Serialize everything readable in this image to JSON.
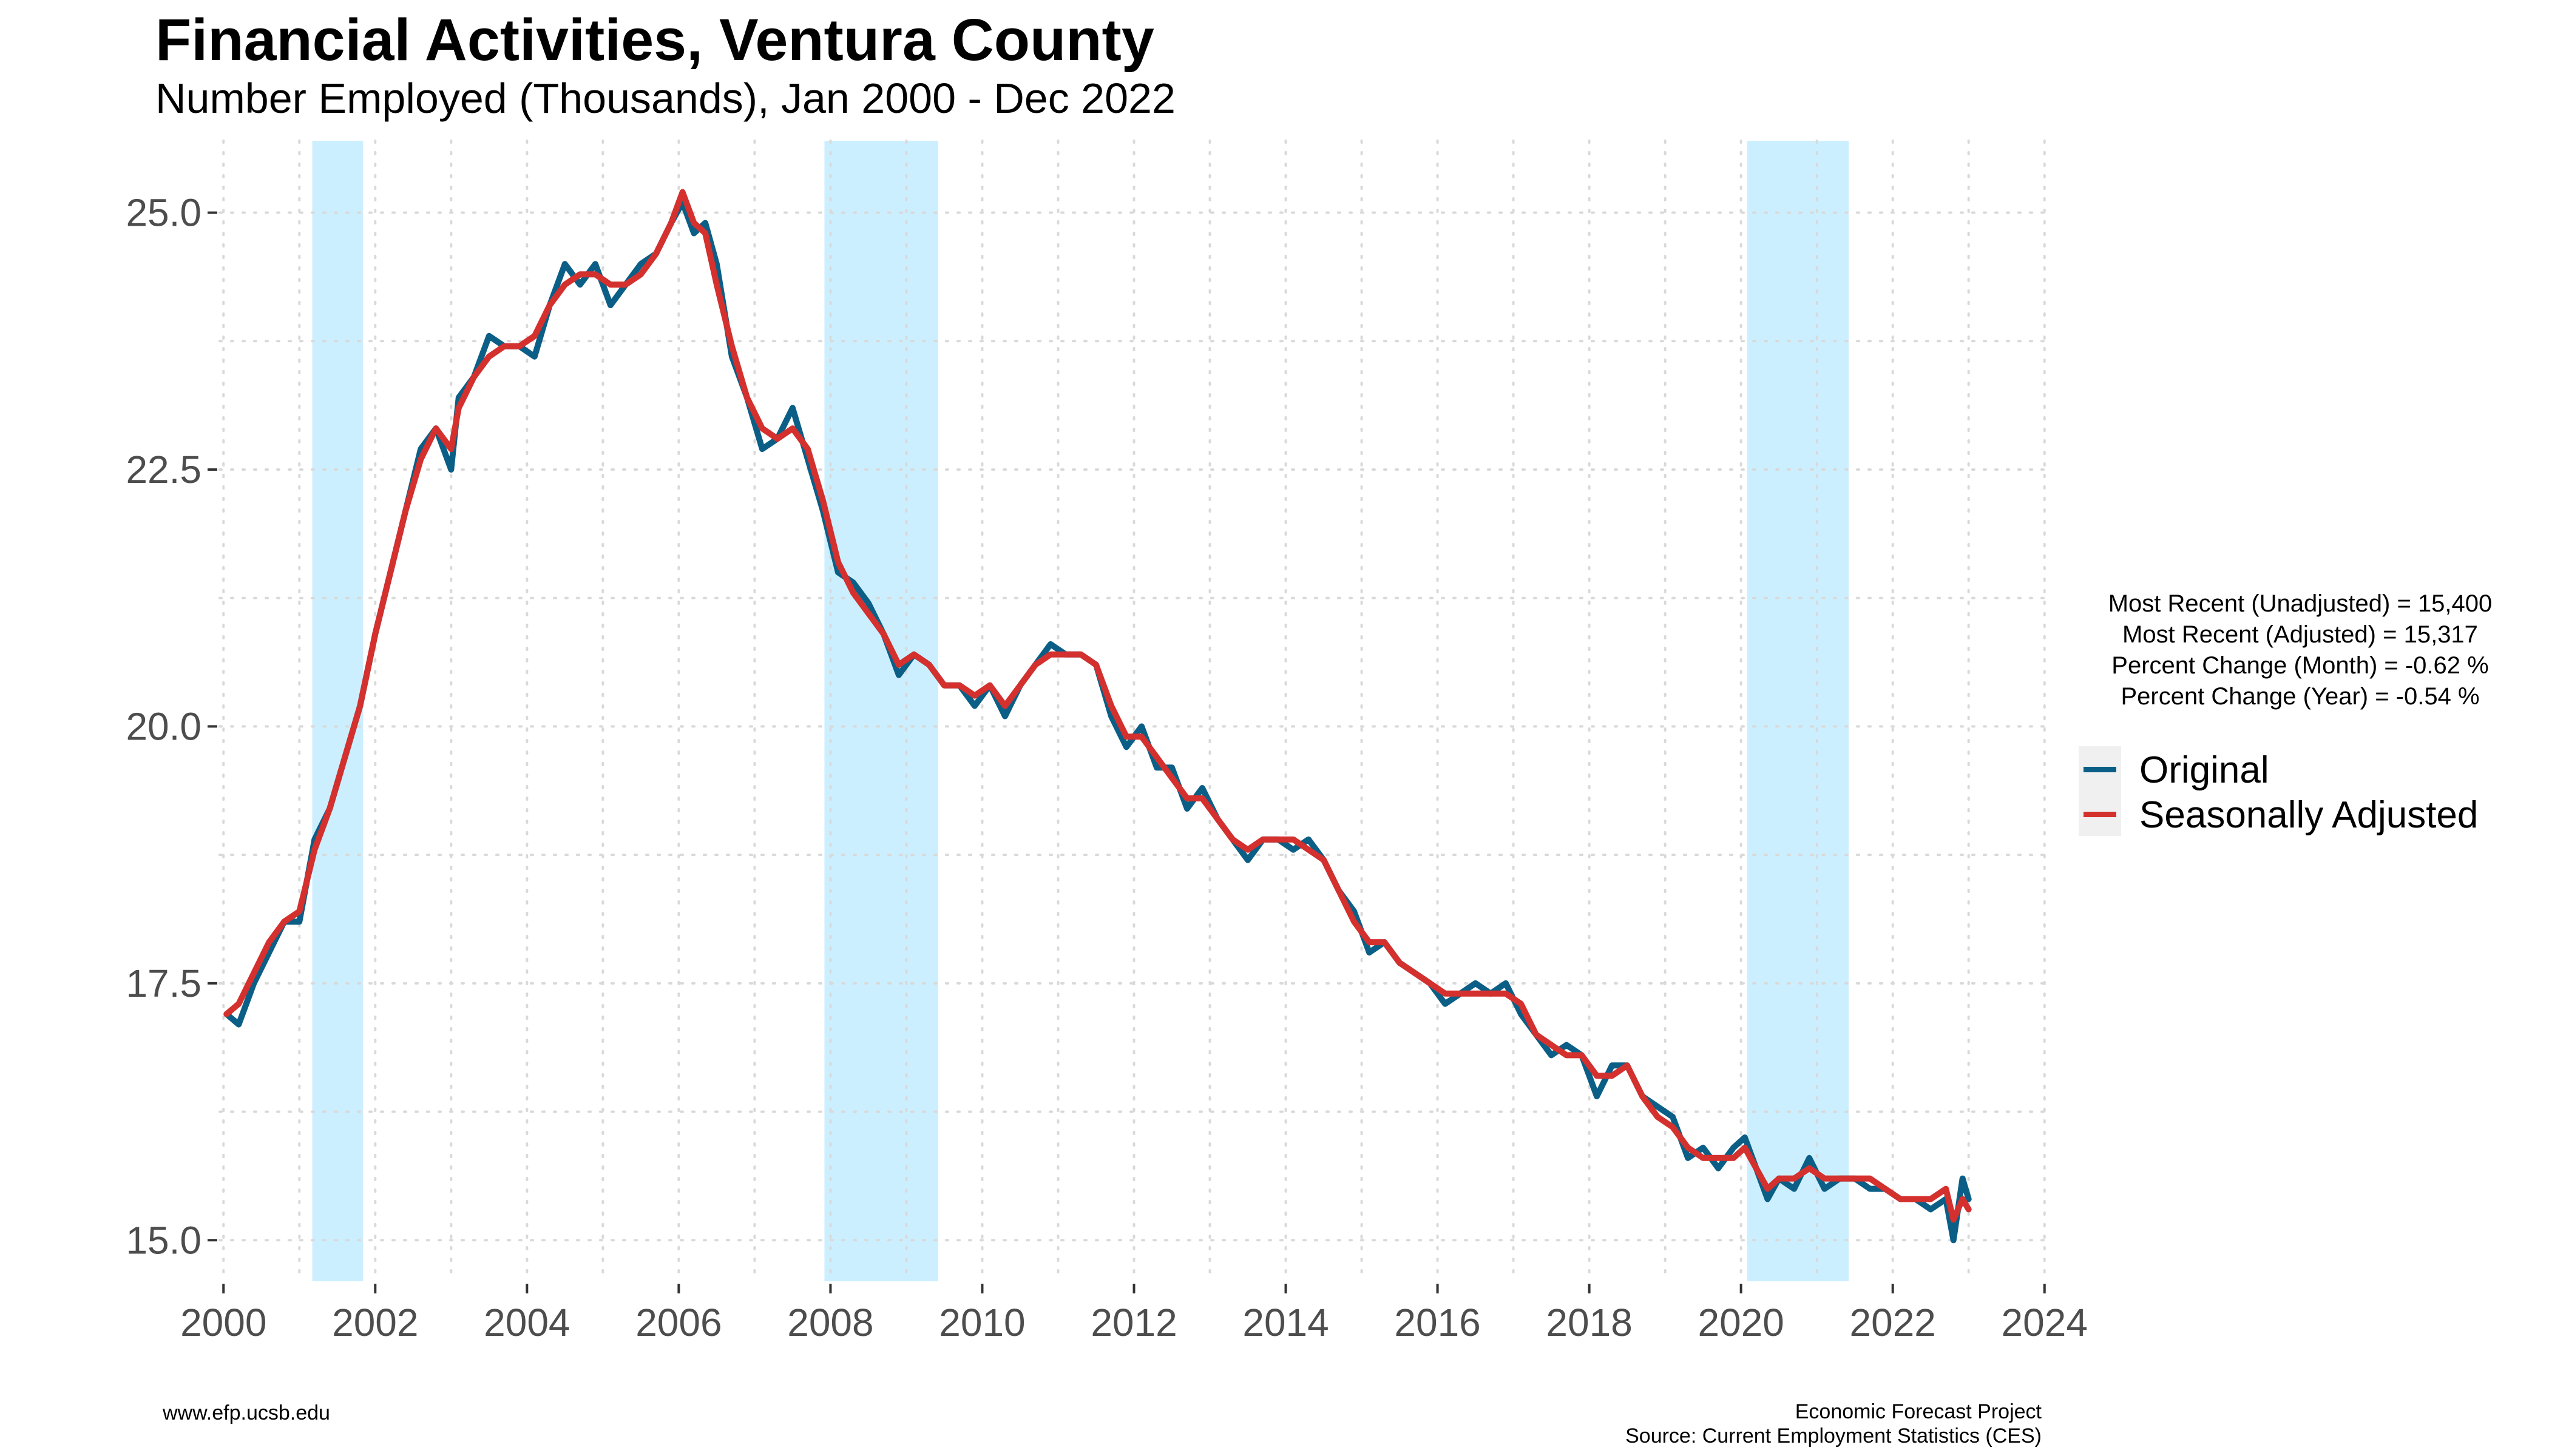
{
  "title": "Financial Activities, Ventura County",
  "subtitle": "Number Employed (Thousands), Jan 2000 - Dec 2022",
  "stats": [
    "Most Recent (Unadjusted) = 15,400",
    "Most Recent (Adjusted) = 15,317",
    "Percent Change (Month) = -0.62 %",
    "Percent Change (Year) = -0.54 %"
  ],
  "legend": [
    {
      "label": "Original",
      "color": "#0b5f86"
    },
    {
      "label": "Seasonally Adjusted",
      "color": "#d3302e"
    }
  ],
  "footer": {
    "left": "www.efp.ucsb.edu",
    "right_line1": "Economic Forecast Project",
    "right_line2": "Source: Current Employment Statistics (CES)"
  },
  "colors": {
    "recession_shade": "#ccefff",
    "grid": "#d9d9d9",
    "axis_text": "#4d4d4d"
  },
  "chart_data": {
    "type": "line",
    "title": "Financial Activities, Ventura County",
    "subtitle": "Number Employed (Thousands), Jan 2000 - Dec 2022",
    "xlabel": "",
    "ylabel": "",
    "xlim": [
      1999.95,
      2024.05
    ],
    "ylim": [
      14.6,
      25.7
    ],
    "x_ticks": [
      2000,
      2002,
      2004,
      2006,
      2008,
      2010,
      2012,
      2014,
      2016,
      2018,
      2020,
      2022,
      2024
    ],
    "y_ticks": [
      15.0,
      17.5,
      20.0,
      22.5,
      25.0
    ],
    "y_tick_labels": [
      "15.0",
      "17.5",
      "20.0",
      "22.5",
      "25.0"
    ],
    "grid": "dotted, major and minor",
    "legend_position": "right",
    "recession_bands": [
      [
        2001.17,
        2001.84
      ],
      [
        2007.92,
        2009.42
      ],
      [
        2020.08,
        2021.42
      ]
    ],
    "series": [
      {
        "name": "Original",
        "color": "#0b5f86",
        "x": [
          2000.04,
          2000.2,
          2000.4,
          2000.6,
          2000.8,
          2001.0,
          2001.2,
          2001.4,
          2001.6,
          2001.8,
          2002.0,
          2002.2,
          2002.4,
          2002.6,
          2002.8,
          2003.0,
          2003.1,
          2003.3,
          2003.5,
          2003.7,
          2003.9,
          2004.1,
          2004.3,
          2004.5,
          2004.7,
          2004.9,
          2005.1,
          2005.3,
          2005.5,
          2005.7,
          2005.9,
          2006.05,
          2006.2,
          2006.35,
          2006.5,
          2006.7,
          2006.9,
          2007.1,
          2007.3,
          2007.5,
          2007.7,
          2007.9,
          2008.1,
          2008.3,
          2008.5,
          2008.7,
          2008.9,
          2009.1,
          2009.3,
          2009.5,
          2009.7,
          2009.9,
          2010.1,
          2010.3,
          2010.5,
          2010.7,
          2010.9,
          2011.1,
          2011.3,
          2011.5,
          2011.7,
          2011.9,
          2012.1,
          2012.3,
          2012.5,
          2012.7,
          2012.9,
          2013.1,
          2013.3,
          2013.5,
          2013.7,
          2013.9,
          2014.1,
          2014.3,
          2014.5,
          2014.7,
          2014.9,
          2015.1,
          2015.3,
          2015.5,
          2015.7,
          2015.9,
          2016.1,
          2016.3,
          2016.5,
          2016.7,
          2016.9,
          2017.1,
          2017.3,
          2017.5,
          2017.7,
          2017.9,
          2018.1,
          2018.3,
          2018.5,
          2018.7,
          2018.9,
          2019.1,
          2019.3,
          2019.5,
          2019.7,
          2019.9,
          2020.05,
          2020.2,
          2020.35,
          2020.5,
          2020.7,
          2020.9,
          2021.1,
          2021.3,
          2021.5,
          2021.7,
          2021.9,
          2022.1,
          2022.3,
          2022.5,
          2022.7,
          2022.8,
          2022.92,
          2023.0
        ],
        "values": [
          17.2,
          17.1,
          17.5,
          17.8,
          18.1,
          18.1,
          18.9,
          19.2,
          19.7,
          20.2,
          20.9,
          21.5,
          22.1,
          22.7,
          22.9,
          22.5,
          23.2,
          23.4,
          23.8,
          23.7,
          23.7,
          23.6,
          24.1,
          24.5,
          24.3,
          24.5,
          24.1,
          24.3,
          24.5,
          24.6,
          24.9,
          25.1,
          24.8,
          24.9,
          24.5,
          23.6,
          23.2,
          22.7,
          22.8,
          23.1,
          22.6,
          22.1,
          21.5,
          21.4,
          21.2,
          20.9,
          20.5,
          20.7,
          20.6,
          20.4,
          20.4,
          20.2,
          20.4,
          20.1,
          20.4,
          20.6,
          20.8,
          20.7,
          20.7,
          20.6,
          20.1,
          19.8,
          20.0,
          19.6,
          19.6,
          19.2,
          19.4,
          19.1,
          18.9,
          18.7,
          18.9,
          18.9,
          18.8,
          18.9,
          18.7,
          18.4,
          18.2,
          17.8,
          17.9,
          17.7,
          17.6,
          17.5,
          17.3,
          17.4,
          17.5,
          17.4,
          17.5,
          17.2,
          17.0,
          16.8,
          16.9,
          16.8,
          16.4,
          16.7,
          16.7,
          16.4,
          16.3,
          16.2,
          15.8,
          15.9,
          15.7,
          15.9,
          16.0,
          15.7,
          15.4,
          15.6,
          15.5,
          15.8,
          15.5,
          15.6,
          15.6,
          15.5,
          15.5,
          15.4,
          15.4,
          15.3,
          15.4,
          15.0,
          15.6,
          15.4
        ]
      },
      {
        "name": "Seasonally Adjusted",
        "color": "#d3302e",
        "x": [
          2000.04,
          2000.2,
          2000.4,
          2000.6,
          2000.8,
          2001.0,
          2001.2,
          2001.4,
          2001.6,
          2001.8,
          2002.0,
          2002.2,
          2002.4,
          2002.6,
          2002.8,
          2003.0,
          2003.1,
          2003.3,
          2003.5,
          2003.7,
          2003.9,
          2004.1,
          2004.3,
          2004.5,
          2004.7,
          2004.9,
          2005.1,
          2005.3,
          2005.5,
          2005.7,
          2005.9,
          2006.05,
          2006.2,
          2006.35,
          2006.5,
          2006.7,
          2006.9,
          2007.1,
          2007.3,
          2007.5,
          2007.7,
          2007.9,
          2008.1,
          2008.3,
          2008.5,
          2008.7,
          2008.9,
          2009.1,
          2009.3,
          2009.5,
          2009.7,
          2009.9,
          2010.1,
          2010.3,
          2010.5,
          2010.7,
          2010.9,
          2011.1,
          2011.3,
          2011.5,
          2011.7,
          2011.9,
          2012.1,
          2012.3,
          2012.5,
          2012.7,
          2012.9,
          2013.1,
          2013.3,
          2013.5,
          2013.7,
          2013.9,
          2014.1,
          2014.3,
          2014.5,
          2014.7,
          2014.9,
          2015.1,
          2015.3,
          2015.5,
          2015.7,
          2015.9,
          2016.1,
          2016.3,
          2016.5,
          2016.7,
          2016.9,
          2017.1,
          2017.3,
          2017.5,
          2017.7,
          2017.9,
          2018.1,
          2018.3,
          2018.5,
          2018.7,
          2018.9,
          2019.1,
          2019.3,
          2019.5,
          2019.7,
          2019.9,
          2020.05,
          2020.2,
          2020.35,
          2020.5,
          2020.7,
          2020.9,
          2021.1,
          2021.3,
          2021.5,
          2021.7,
          2021.9,
          2022.1,
          2022.3,
          2022.5,
          2022.7,
          2022.8,
          2022.92,
          2023.0
        ],
        "values": [
          17.2,
          17.3,
          17.6,
          17.9,
          18.1,
          18.2,
          18.8,
          19.2,
          19.7,
          20.2,
          20.9,
          21.5,
          22.1,
          22.6,
          22.9,
          22.7,
          23.1,
          23.4,
          23.6,
          23.7,
          23.7,
          23.8,
          24.1,
          24.3,
          24.4,
          24.4,
          24.3,
          24.3,
          24.4,
          24.6,
          24.9,
          25.2,
          24.9,
          24.8,
          24.3,
          23.7,
          23.2,
          22.9,
          22.8,
          22.9,
          22.7,
          22.2,
          21.6,
          21.3,
          21.1,
          20.9,
          20.6,
          20.7,
          20.6,
          20.4,
          20.4,
          20.3,
          20.4,
          20.2,
          20.4,
          20.6,
          20.7,
          20.7,
          20.7,
          20.6,
          20.2,
          19.9,
          19.9,
          19.7,
          19.5,
          19.3,
          19.3,
          19.1,
          18.9,
          18.8,
          18.9,
          18.9,
          18.9,
          18.8,
          18.7,
          18.4,
          18.1,
          17.9,
          17.9,
          17.7,
          17.6,
          17.5,
          17.4,
          17.4,
          17.4,
          17.4,
          17.4,
          17.3,
          17.0,
          16.9,
          16.8,
          16.8,
          16.6,
          16.6,
          16.7,
          16.4,
          16.2,
          16.1,
          15.9,
          15.8,
          15.8,
          15.8,
          15.9,
          15.7,
          15.5,
          15.6,
          15.6,
          15.7,
          15.6,
          15.6,
          15.6,
          15.6,
          15.5,
          15.4,
          15.4,
          15.4,
          15.5,
          15.2,
          15.4,
          15.3
        ]
      }
    ]
  }
}
